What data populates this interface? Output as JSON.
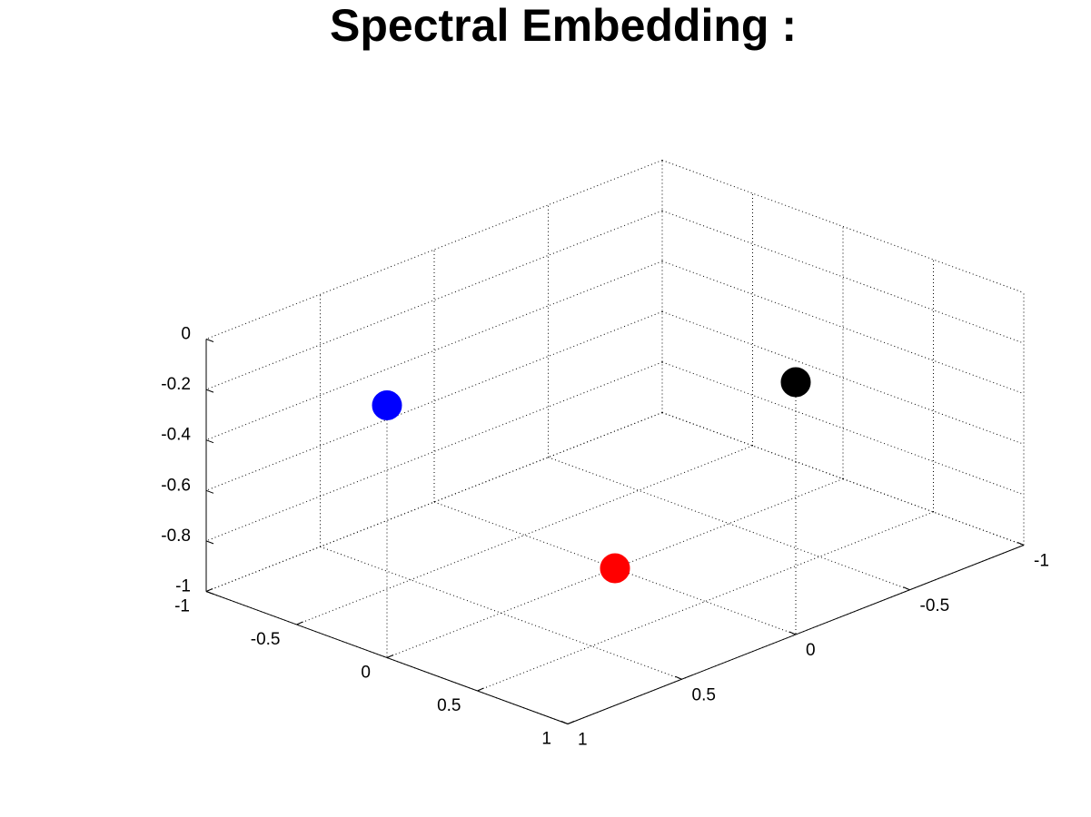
{
  "chart_data": {
    "type": "scatter",
    "projection": "3d",
    "title": "Spectral Embedding :",
    "xlabel": "",
    "ylabel": "",
    "zlabel": "",
    "xlim": [
      -1,
      1
    ],
    "ylim": [
      -1,
      1
    ],
    "zlim": [
      -1,
      0
    ],
    "grid": true,
    "x_ticks": [
      "-1",
      "-0.5",
      "0",
      "0.5",
      "1"
    ],
    "y_ticks": [
      "-1",
      "-0.5",
      "0",
      "0.5",
      "1"
    ],
    "z_ticks": [
      "-1",
      "-0.8",
      "-0.6",
      "-0.4",
      "-0.2",
      "0"
    ],
    "points": [
      {
        "x": 1.0,
        "y": 0.0,
        "z": 0.0,
        "color": "#0000ff"
      },
      {
        "x": 0.0,
        "y": 1.0,
        "z": 0.0,
        "color": "#000000"
      },
      {
        "x": 0.0,
        "y": 0.0,
        "z": -1.0,
        "color": "#ff0000"
      }
    ]
  }
}
